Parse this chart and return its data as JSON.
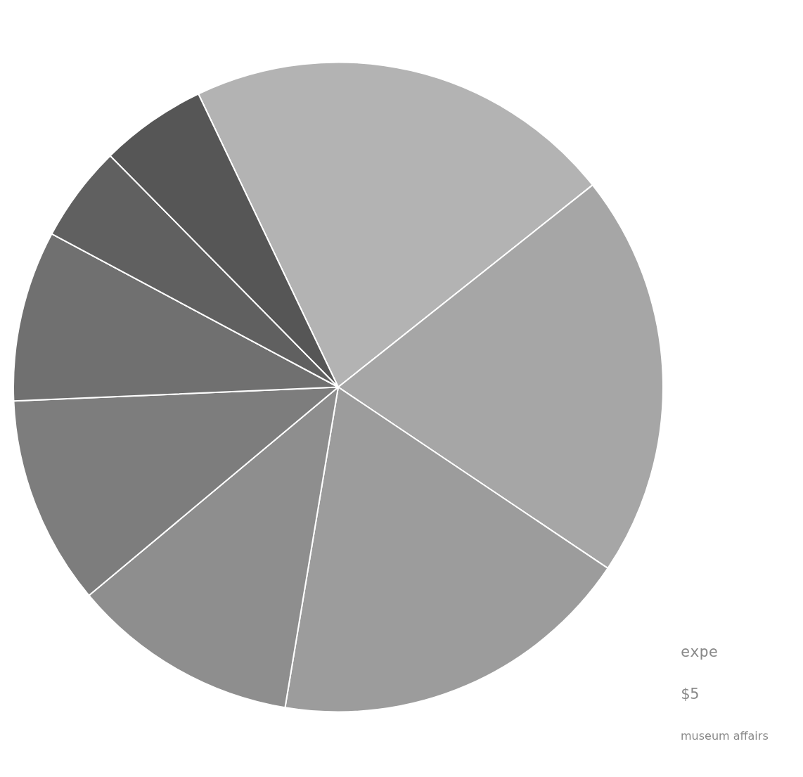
{
  "chart_data": {
    "type": "pie",
    "categories": [
      null,
      null,
      null,
      null,
      null,
      null,
      null,
      null
    ],
    "values": [
      21.4,
      20.1,
      18.2,
      11.3,
      10.4,
      8.5,
      4.8,
      5.3
    ],
    "colors": [
      "#b3b3b3",
      "#a6a6a6",
      "#9c9c9c",
      "#8e8e8e",
      "#7d7d7d",
      "#707070",
      "#606060",
      "#565656"
    ],
    "annotations": [
      "expe",
      "$5",
      "museum affairs"
    ]
  }
}
